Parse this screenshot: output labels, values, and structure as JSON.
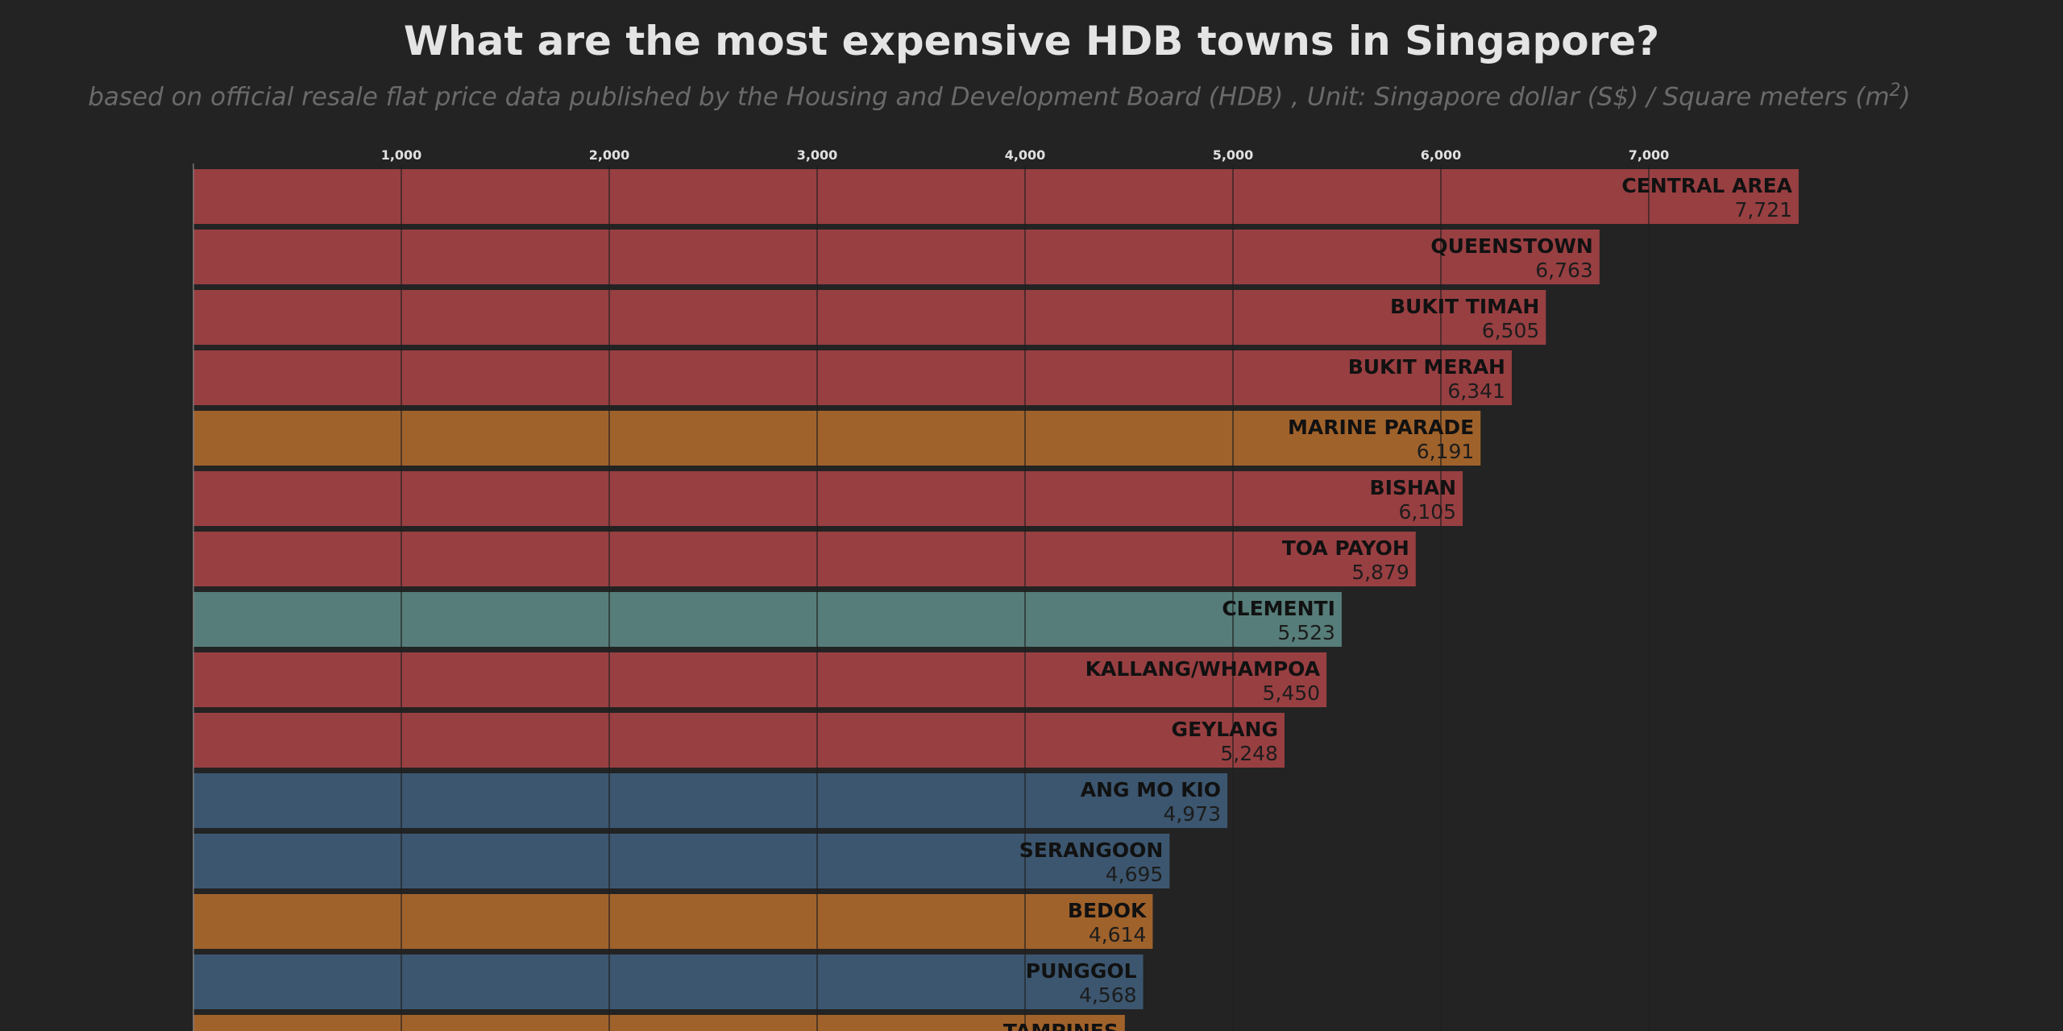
{
  "title": "What are the most expensive HDB towns in Singapore?",
  "subtitle_main": "based on official resale flat price data published by the Housing and Development Board (HDB) , Unit: Singapore dollar (S$) / Square meters (m",
  "subtitle_sup": "2",
  "subtitle_end": ")",
  "colors": {
    "background": "#232323",
    "central": "#983f42",
    "east": "#a0622b",
    "west": "#567d79",
    "northeast": "#3c566f",
    "gridline": "#1f1f1f"
  },
  "chart_data": {
    "type": "bar",
    "orientation": "horizontal",
    "xlim": [
      0,
      7721
    ],
    "x_ticks": [
      1000,
      2000,
      3000,
      4000,
      5000,
      6000,
      7000
    ],
    "x_tick_labels": [
      "1,000",
      "2,000",
      "3,000",
      "4,000",
      "5,000",
      "6,000",
      "7,000"
    ],
    "x_axis_position": "top",
    "grid": true,
    "categories": [
      "CENTRAL AREA",
      "QUEENSTOWN",
      "BUKIT TIMAH",
      "BUKIT MERAH",
      "MARINE PARADE",
      "BISHAN",
      "TOA PAYOH",
      "CLEMENTI",
      "KALLANG/WHAMPOA",
      "GEYLANG",
      "ANG MO KIO",
      "SERANGOON",
      "BEDOK",
      "PUNGGOL",
      "TAMPINES"
    ],
    "values": [
      7721,
      6763,
      6505,
      6341,
      6191,
      6105,
      5879,
      5523,
      5450,
      5248,
      4973,
      4695,
      4614,
      4568,
      4480
    ],
    "value_labels": [
      "7,721",
      "6,763",
      "6,505",
      "6,341",
      "6,191",
      "6,105",
      "5,879",
      "5,523",
      "5,450",
      "5,248",
      "4,973",
      "4,695",
      "4,614",
      "4,568",
      ""
    ],
    "bar_colors": [
      "#983f42",
      "#983f42",
      "#983f42",
      "#983f42",
      "#a0622b",
      "#983f42",
      "#983f42",
      "#567d79",
      "#983f42",
      "#983f42",
      "#3c566f",
      "#3c566f",
      "#a0622b",
      "#3c566f",
      "#a0622b"
    ]
  }
}
